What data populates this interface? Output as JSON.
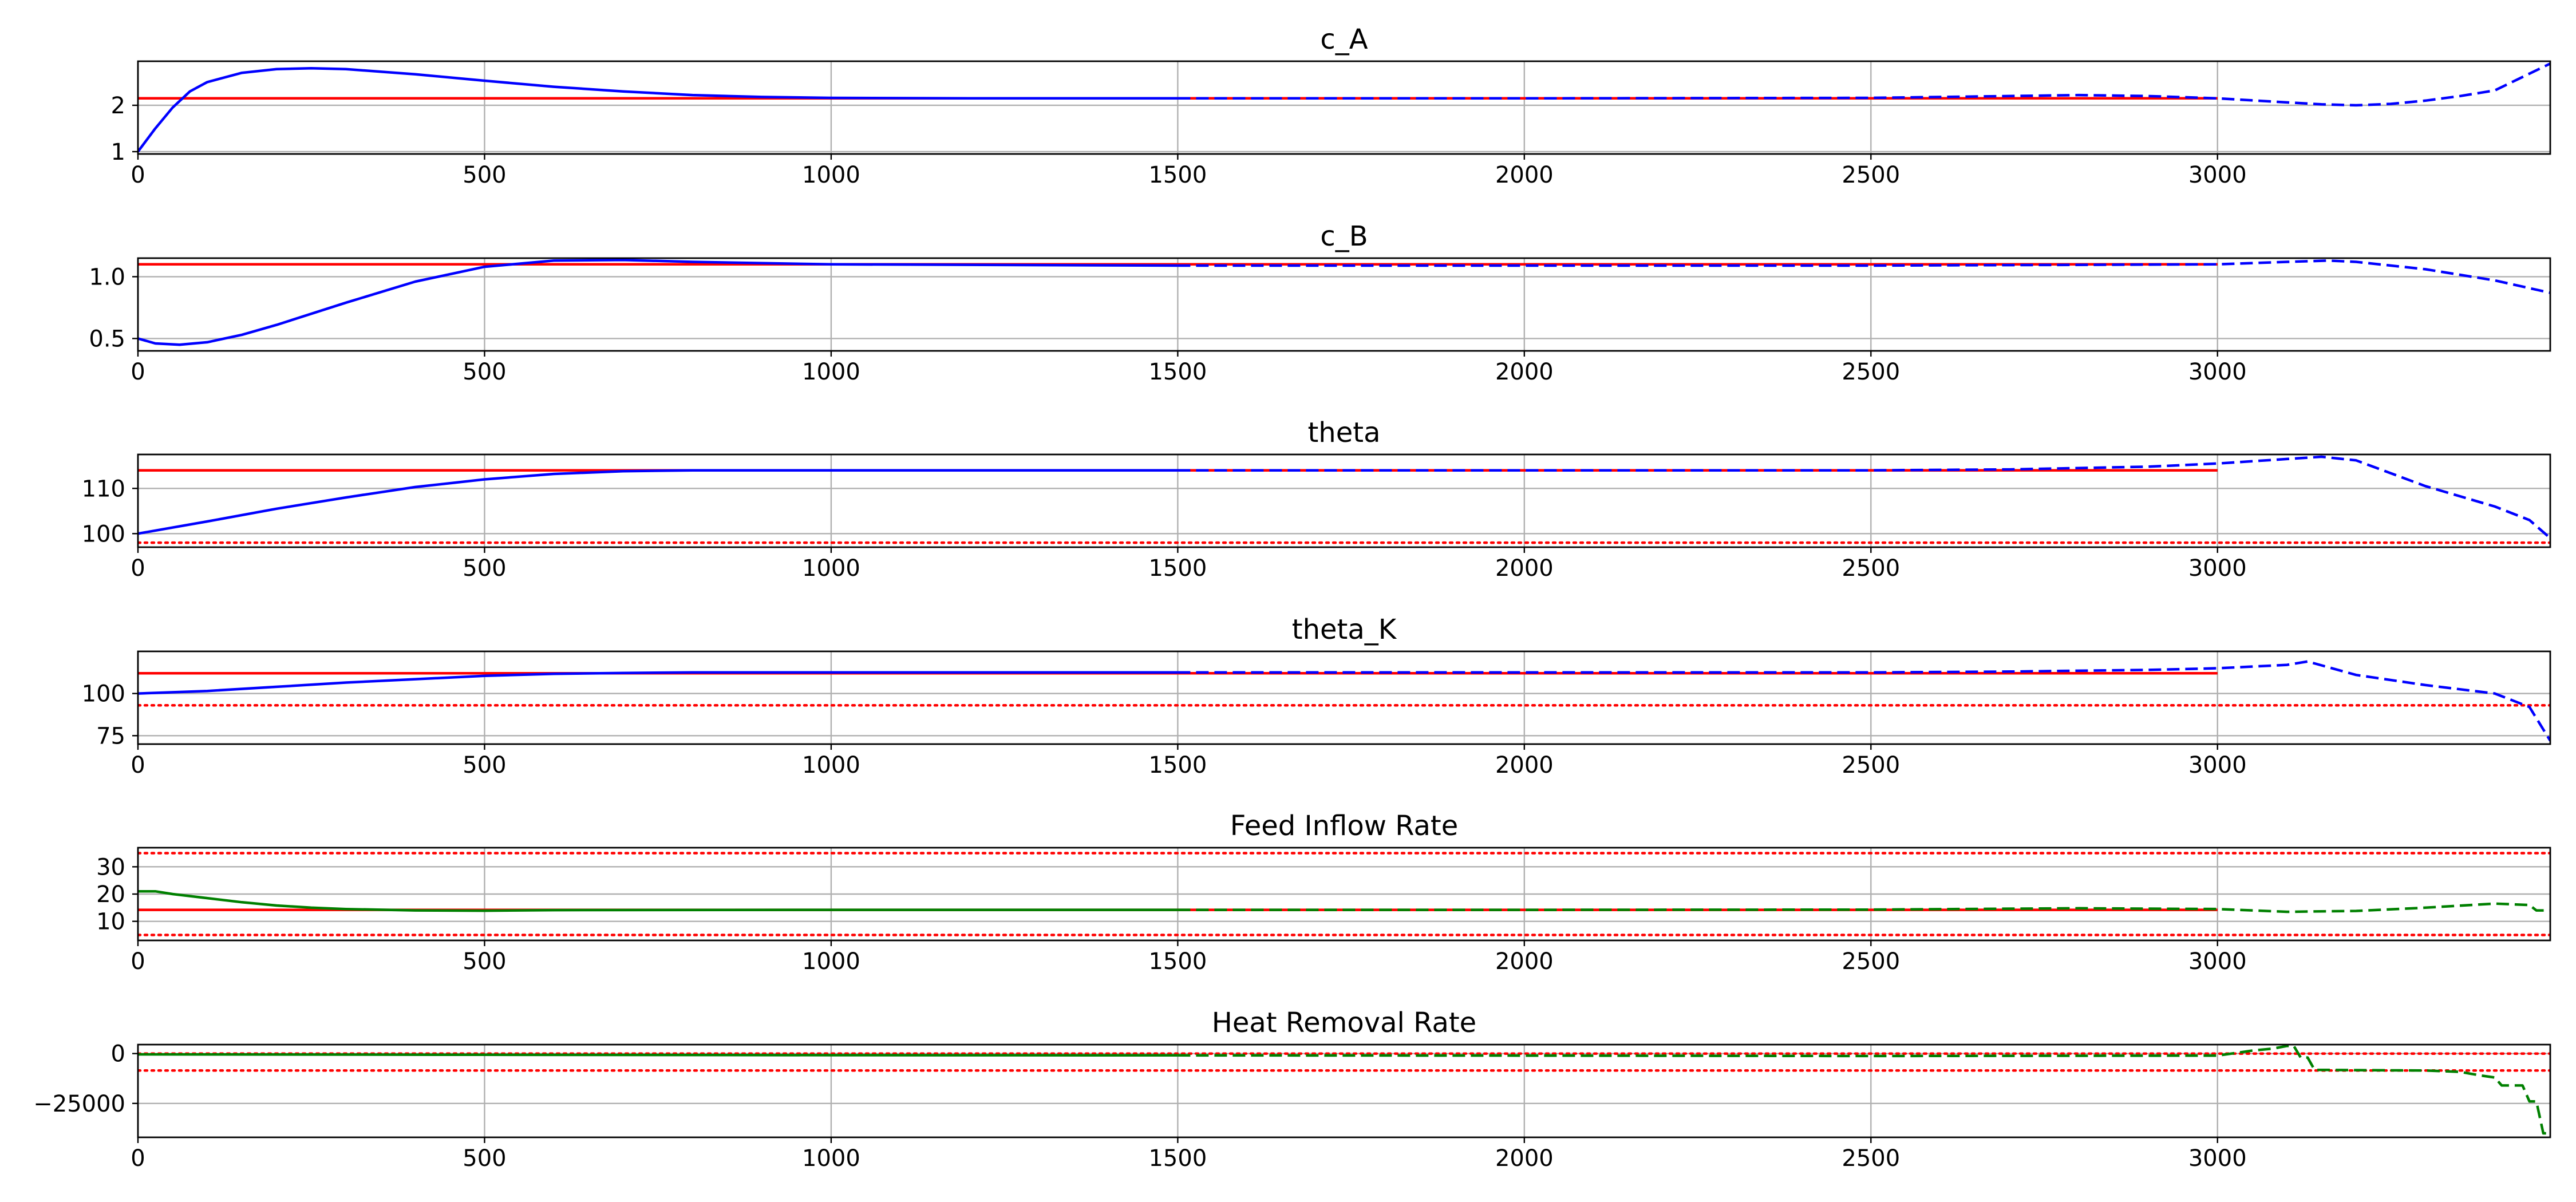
{
  "chart_data": [
    {
      "type": "line",
      "title": "c_A",
      "xlim": [
        0,
        3480
      ],
      "ylim": [
        0.95,
        2.95
      ],
      "xticks": [
        0,
        500,
        1000,
        1500,
        2000,
        2500,
        3000
      ],
      "yticks": [
        1,
        2
      ],
      "grid": true,
      "series": [
        {
          "color": "#ff0000",
          "style": "solid",
          "x": [
            0,
            3000
          ],
          "y": [
            2.15,
            2.15
          ]
        },
        {
          "color": "#0000ff",
          "style": "solid",
          "x": [
            0,
            25,
            50,
            75,
            100,
            150,
            200,
            250,
            300,
            400,
            500,
            600,
            700,
            800,
            900,
            1000,
            1200,
            1500
          ],
          "y": [
            1.0,
            1.5,
            1.95,
            2.3,
            2.5,
            2.7,
            2.78,
            2.8,
            2.78,
            2.67,
            2.53,
            2.4,
            2.3,
            2.22,
            2.18,
            2.16,
            2.15,
            2.15
          ]
        },
        {
          "color": "#0000ff",
          "style": "dashed",
          "x": [
            1500,
            2000,
            2500,
            2700,
            2800,
            2900,
            3000,
            3080,
            3150,
            3200,
            3250,
            3300,
            3350,
            3400,
            3480
          ],
          "y": [
            2.15,
            2.15,
            2.16,
            2.2,
            2.22,
            2.2,
            2.15,
            2.08,
            2.02,
            2.0,
            2.03,
            2.1,
            2.2,
            2.32,
            2.9
          ]
        }
      ]
    },
    {
      "type": "line",
      "title": "c_B",
      "xlim": [
        0,
        3480
      ],
      "ylim": [
        0.4,
        1.15
      ],
      "xticks": [
        0,
        500,
        1000,
        1500,
        2000,
        2500,
        3000
      ],
      "yticks": [
        0.5,
        1.0
      ],
      "ytick_labels": [
        "0.5",
        "1.0"
      ],
      "grid": true,
      "series": [
        {
          "color": "#ff0000",
          "style": "solid",
          "x": [
            0,
            3000
          ],
          "y": [
            1.1,
            1.1
          ]
        },
        {
          "color": "#0000ff",
          "style": "solid",
          "x": [
            0,
            25,
            60,
            100,
            150,
            200,
            300,
            400,
            500,
            600,
            700,
            800,
            1000,
            1500
          ],
          "y": [
            0.5,
            0.46,
            0.45,
            0.47,
            0.53,
            0.61,
            0.79,
            0.96,
            1.08,
            1.13,
            1.135,
            1.12,
            1.1,
            1.09
          ]
        },
        {
          "color": "#0000ff",
          "style": "dashed",
          "x": [
            1500,
            2000,
            2500,
            3000,
            3100,
            3160,
            3200,
            3300,
            3400,
            3480
          ],
          "y": [
            1.09,
            1.09,
            1.09,
            1.1,
            1.12,
            1.13,
            1.12,
            1.06,
            0.97,
            0.87
          ]
        }
      ]
    },
    {
      "type": "line",
      "title": "theta",
      "xlim": [
        0,
        3480
      ],
      "ylim": [
        97,
        117.5
      ],
      "xticks": [
        0,
        500,
        1000,
        1500,
        2000,
        2500,
        3000
      ],
      "yticks": [
        100,
        110
      ],
      "grid": true,
      "series": [
        {
          "color": "#ff0000",
          "style": "solid",
          "x": [
            0,
            3000
          ],
          "y": [
            114,
            114
          ]
        },
        {
          "color": "#ff0000",
          "style": "dotted",
          "x": [
            0,
            3480
          ],
          "y": [
            98,
            98
          ]
        },
        {
          "color": "#0000ff",
          "style": "solid",
          "x": [
            0,
            100,
            200,
            300,
            400,
            500,
            600,
            700,
            800,
            1000,
            1500
          ],
          "y": [
            100,
            102.7,
            105.5,
            108,
            110.3,
            112,
            113.2,
            113.8,
            114,
            114,
            114
          ]
        },
        {
          "color": "#0000ff",
          "style": "dashed",
          "x": [
            1500,
            2000,
            2500,
            2700,
            2900,
            3000,
            3100,
            3150,
            3200,
            3300,
            3400,
            3450,
            3480
          ],
          "y": [
            114,
            114,
            114,
            114.2,
            114.8,
            115.5,
            116.5,
            117,
            116.2,
            110.5,
            106,
            103,
            99
          ]
        }
      ]
    },
    {
      "type": "line",
      "title": "theta_K",
      "xlim": [
        0,
        3480
      ],
      "ylim": [
        70,
        125
      ],
      "xticks": [
        0,
        500,
        1000,
        1500,
        2000,
        2500,
        3000
      ],
      "yticks": [
        75,
        100
      ],
      "grid": true,
      "series": [
        {
          "color": "#ff0000",
          "style": "solid",
          "x": [
            0,
            3000
          ],
          "y": [
            112,
            112
          ]
        },
        {
          "color": "#ff0000",
          "style": "dotted",
          "x": [
            0,
            3480
          ],
          "y": [
            93,
            93
          ]
        },
        {
          "color": "#0000ff",
          "style": "solid",
          "x": [
            0,
            100,
            200,
            300,
            400,
            500,
            600,
            700,
            800,
            1000,
            1500
          ],
          "y": [
            100,
            101.5,
            104,
            106.5,
            108.5,
            110.5,
            111.7,
            112.2,
            112.5,
            112.5,
            112.5
          ]
        },
        {
          "color": "#0000ff",
          "style": "dashed",
          "x": [
            1500,
            2000,
            2500,
            2700,
            2900,
            3000,
            3100,
            3130,
            3200,
            3300,
            3400,
            3450,
            3480
          ],
          "y": [
            112.5,
            112.5,
            112.5,
            113,
            114,
            115,
            117,
            119,
            111,
            105,
            100,
            92,
            72
          ]
        }
      ]
    },
    {
      "type": "line",
      "title": "Feed Inflow Rate",
      "xlim": [
        0,
        3480
      ],
      "ylim": [
        3,
        37
      ],
      "xticks": [
        0,
        500,
        1000,
        1500,
        2000,
        2500,
        3000
      ],
      "yticks": [
        10,
        20,
        30
      ],
      "grid": true,
      "series": [
        {
          "color": "#ff0000",
          "style": "solid",
          "x": [
            0,
            3000
          ],
          "y": [
            14.2,
            14.2
          ]
        },
        {
          "color": "#ff0000",
          "style": "dotted",
          "x": [
            0,
            3480
          ],
          "y": [
            5,
            5
          ]
        },
        {
          "color": "#ff0000",
          "style": "dotted",
          "x": [
            0,
            3480
          ],
          "y": [
            35,
            35
          ]
        },
        {
          "color": "#008000",
          "style": "solid",
          "x": [
            0,
            25,
            50,
            100,
            150,
            200,
            250,
            300,
            400,
            500,
            600,
            1000,
            1500
          ],
          "y": [
            21,
            21,
            20,
            18.5,
            17,
            15.8,
            15,
            14.5,
            14,
            13.9,
            14.1,
            14.2,
            14.2
          ]
        },
        {
          "color": "#008000",
          "style": "dashed",
          "x": [
            1500,
            2000,
            2500,
            2800,
            3000,
            3100,
            3200,
            3300,
            3400,
            3450,
            3460,
            3480
          ],
          "y": [
            14.2,
            14.2,
            14.3,
            14.8,
            14.5,
            13.5,
            13.8,
            15,
            16.5,
            16,
            14,
            14
          ]
        }
      ]
    },
    {
      "type": "line",
      "title": "Heat Removal Rate",
      "xlim": [
        0,
        3480
      ],
      "ylim": [
        -42000,
        4500
      ],
      "xticks": [
        0,
        500,
        1000,
        1500,
        2000,
        2500,
        3000
      ],
      "yticks": [
        -25000,
        0
      ],
      "ytick_labels": [
        "−25000",
        "0"
      ],
      "grid": true,
      "series": [
        {
          "color": "#ff0000",
          "style": "dotted",
          "x": [
            0,
            3480
          ],
          "y": [
            0,
            0
          ]
        },
        {
          "color": "#ff0000",
          "style": "dotted",
          "x": [
            0,
            3480
          ],
          "y": [
            -8500,
            -8500
          ]
        },
        {
          "color": "#008000",
          "style": "solid",
          "x": [
            0,
            500,
            1000,
            1500
          ],
          "y": [
            -400,
            -600,
            -800,
            -900
          ]
        },
        {
          "color": "#008000",
          "style": "dashed",
          "x": [
            1500,
            2000,
            2500,
            3000,
            3050,
            3080,
            3100,
            3110,
            3120,
            3130,
            3140,
            3150,
            3200,
            3300,
            3350,
            3380,
            3400,
            3410,
            3420,
            3440,
            3450,
            3460,
            3470,
            3480
          ],
          "y": [
            -900,
            -1000,
            -1200,
            -1000,
            1500,
            2500,
            3800,
            3800,
            -2000,
            -2000,
            -8200,
            -8200,
            -8300,
            -8500,
            -9200,
            -11000,
            -12000,
            -16000,
            -16000,
            -16000,
            -24000,
            -24000,
            -40000,
            -40000
          ]
        }
      ]
    }
  ]
}
